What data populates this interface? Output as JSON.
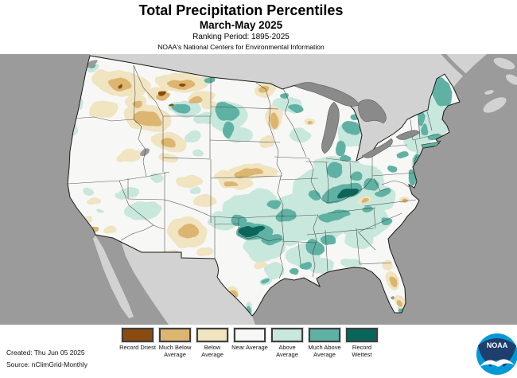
{
  "header": {
    "title": "Total Precipitation Percentiles",
    "period": "March-May 2025",
    "ranking": "Ranking Period: 1895-2025",
    "org": "NOAA's National Centers for Environmental Information"
  },
  "legend": {
    "items": [
      {
        "label": "Record Driest",
        "color": "#8A4A10"
      },
      {
        "label": "Much Below Average",
        "color": "#DCB570"
      },
      {
        "label": "Below Average",
        "color": "#F0E4C1"
      },
      {
        "label": "Near Average",
        "color": "#F7F7F5"
      },
      {
        "label": "Above Average",
        "color": "#C8E7DD"
      },
      {
        "label": "Much Above Average",
        "color": "#5FB2A3"
      },
      {
        "label": "Record Wettest",
        "color": "#07655A"
      }
    ]
  },
  "map": {
    "ocean": "#9B9B9B",
    "foreign_land": "#D2D2D2",
    "lake": "#8A8A8A",
    "us_base": "#F7F7F5",
    "state_border": "#3C3C3C",
    "missing": "#9A9A9A"
  },
  "footer": {
    "created": "Created: Thu Jun 05 2025",
    "source": "Source: nClimGrid-Monthly"
  },
  "logo": {
    "text": "NOAA",
    "navy": "#1E3E6E",
    "cyan": "#0099D8"
  }
}
